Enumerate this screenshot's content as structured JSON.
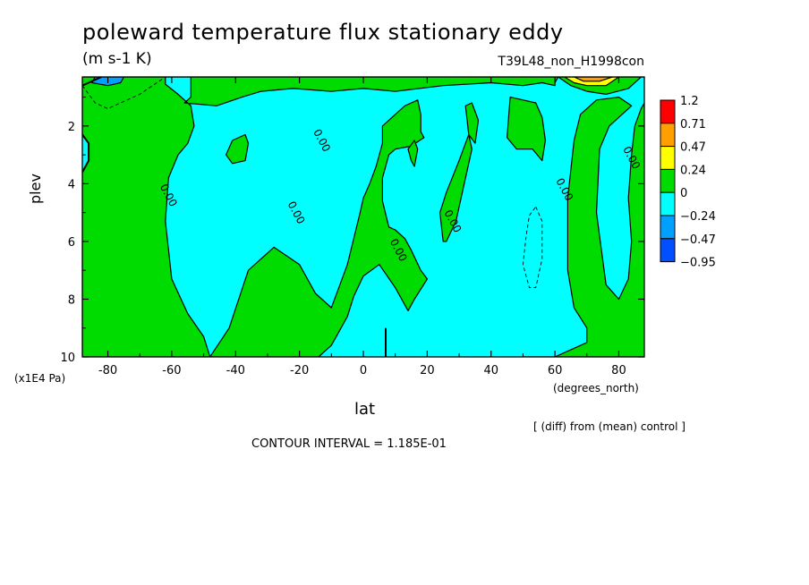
{
  "header": {
    "title": "poleward temperature flux stationary eddy",
    "units": "(m s-1 K)",
    "run_id": "T39L48_non_H1998con"
  },
  "footer": {
    "note": "[ (diff) from (mean) control ]",
    "contour_interval": "CONTOUR INTERVAL = 1.185E-01"
  },
  "chart_data": {
    "type": "contour",
    "title": "poleward temperature flux stationary eddy",
    "subtitle": "(m s-1 K)",
    "xlabel": "lat",
    "xunit": "(degrees_north)",
    "ylabel": "plev",
    "yunit": "(x1E4 Pa)",
    "xlim": [
      -88,
      88
    ],
    "ylim": [
      10,
      0.3
    ],
    "y_inverted": true,
    "x_ticks": [
      -80,
      -60,
      -40,
      -20,
      0,
      20,
      40,
      60,
      80
    ],
    "y_ticks": [
      2,
      4,
      6,
      8,
      10
    ],
    "contour_interval": 0.1185,
    "contour_labels": [
      {
        "text": "0.00",
        "lat": -61,
        "plev": 4.4
      },
      {
        "text": "0.00",
        "lat": -21,
        "plev": 5.0
      },
      {
        "text": "0.00",
        "lat": -13,
        "plev": 2.5
      },
      {
        "text": "0.00",
        "lat": 11,
        "plev": 6.3
      },
      {
        "text": "0.00",
        "lat": 28,
        "plev": 5.3
      },
      {
        "text": "0.00",
        "lat": 63,
        "plev": 4.2
      },
      {
        "text": "0.00",
        "lat": 84,
        "plev": 3.1
      }
    ],
    "colorbar": {
      "levels": [
        "1.2",
        "0.71",
        "0.47",
        "0.24",
        "0",
        "-0.24",
        "-0.47",
        "-0.95"
      ],
      "colors": [
        "#ff0000",
        "#ffa000",
        "#ffff00",
        "#00dc00",
        "#00ffff",
        "#00a0ff",
        "#0050ff"
      ]
    },
    "regions": [
      {
        "sign": "positive",
        "color": "#00dc00",
        "polygon": [
          [
            -88,
            0.3
          ],
          [
            -88,
            2.3
          ],
          [
            -86,
            2.6
          ],
          [
            -86,
            3.2
          ],
          [
            -88,
            3.6
          ],
          [
            -88,
            10
          ],
          [
            -48,
            10
          ],
          [
            -50,
            9.3
          ],
          [
            -55,
            8.5
          ],
          [
            -60,
            7.3
          ],
          [
            -62,
            5.3
          ],
          [
            -61,
            3.8
          ],
          [
            -58,
            3.0
          ],
          [
            -55,
            2.6
          ],
          [
            -53,
            2.0
          ],
          [
            -54,
            1.3
          ],
          [
            -58,
            0.9
          ],
          [
            -62,
            0.55
          ],
          [
            -62,
            0.3
          ],
          [
            -54,
            0.3
          ],
          [
            -54,
            1.0
          ],
          [
            -56,
            1.2
          ],
          [
            -46,
            1.3
          ],
          [
            -38,
            1.0
          ],
          [
            -32,
            0.8
          ],
          [
            -22,
            0.7
          ],
          [
            -10,
            0.8
          ],
          [
            0,
            0.7
          ],
          [
            10,
            0.8
          ],
          [
            25,
            0.6
          ],
          [
            40,
            0.5
          ],
          [
            50,
            0.6
          ],
          [
            56,
            0.5
          ],
          [
            60,
            0.6
          ],
          [
            60,
            0.5
          ],
          [
            61,
            0.3
          ]
        ]
      },
      {
        "sign": "positive",
        "color": "#00dc00",
        "polygon": [
          [
            61,
            0.3
          ],
          [
            65,
            0.6
          ],
          [
            70,
            0.8
          ],
          [
            76,
            0.9
          ],
          [
            83,
            0.7
          ],
          [
            87,
            0.3
          ],
          [
            88,
            0.3
          ],
          [
            88,
            1.2
          ],
          [
            87,
            1.4
          ],
          [
            85,
            2.0
          ],
          [
            84,
            3.0
          ],
          [
            83,
            4.5
          ],
          [
            84,
            6.0
          ],
          [
            83,
            7.3
          ],
          [
            80,
            8.0
          ],
          [
            76,
            7.5
          ],
          [
            73,
            5.0
          ],
          [
            74,
            2.8
          ],
          [
            77,
            2.0
          ],
          [
            84,
            1.3
          ],
          [
            80,
            1.0
          ],
          [
            73,
            1.1
          ],
          [
            68,
            1.6
          ],
          [
            66,
            2.5
          ],
          [
            64,
            4.5
          ],
          [
            64,
            7.0
          ],
          [
            66,
            8.3
          ],
          [
            70,
            9.0
          ],
          [
            70,
            9.5
          ],
          [
            60,
            10
          ],
          [
            50,
            10
          ],
          [
            88,
            10
          ],
          [
            88,
            0.3
          ]
        ]
      },
      {
        "sign": "positive",
        "color": "#00dc00",
        "polygon": [
          [
            -48,
            10
          ],
          [
            -42,
            9.0
          ],
          [
            -36,
            7.0
          ],
          [
            -28,
            6.2
          ],
          [
            -20,
            6.8
          ],
          [
            -15,
            7.8
          ],
          [
            -10,
            8.3
          ],
          [
            -5,
            6.8
          ],
          [
            -1,
            5.0
          ],
          [
            0,
            4.5
          ],
          [
            2,
            4.0
          ],
          [
            4,
            3.4
          ],
          [
            6,
            2.6
          ],
          [
            6,
            2.0
          ],
          [
            10,
            1.6
          ],
          [
            13,
            1.3
          ],
          [
            17,
            1.1
          ],
          [
            18,
            1.6
          ],
          [
            18,
            2.2
          ],
          [
            19,
            2.4
          ],
          [
            15,
            2.7
          ],
          [
            10,
            2.8
          ],
          [
            8,
            3.0
          ],
          [
            6,
            3.8
          ],
          [
            6,
            4.6
          ],
          [
            8,
            5.5
          ],
          [
            10,
            5.6
          ],
          [
            13,
            5.9
          ],
          [
            15,
            6.3
          ],
          [
            18,
            7.0
          ],
          [
            20,
            7.3
          ],
          [
            16,
            8.0
          ],
          [
            14,
            8.4
          ],
          [
            10,
            7.6
          ],
          [
            5,
            6.8
          ],
          [
            0,
            7.2
          ],
          [
            -3,
            7.9
          ],
          [
            -5,
            8.6
          ],
          [
            -8,
            9.2
          ],
          [
            -10,
            9.6
          ],
          [
            -14,
            10
          ]
        ]
      },
      {
        "sign": "positive",
        "color": "#00dc00",
        "polygon": [
          [
            -43,
            3.0
          ],
          [
            -41,
            2.5
          ],
          [
            -37,
            2.3
          ],
          [
            -36,
            2.6
          ],
          [
            -37,
            3.2
          ],
          [
            -41,
            3.3
          ]
        ]
      },
      {
        "sign": "positive",
        "color": "#00dc00",
        "polygon": [
          [
            14,
            2.8
          ],
          [
            16,
            2.5
          ],
          [
            17,
            2.8
          ],
          [
            16,
            3.4
          ],
          [
            15,
            3.2
          ]
        ]
      },
      {
        "sign": "positive",
        "color": "#00dc00",
        "polygon": [
          [
            25,
            6.0
          ],
          [
            24,
            5.0
          ],
          [
            26,
            4.3
          ],
          [
            30,
            3.2
          ],
          [
            33,
            2.3
          ],
          [
            34,
            2.8
          ],
          [
            31,
            4.3
          ],
          [
            29,
            5.3
          ],
          [
            26,
            6.0
          ]
        ]
      },
      {
        "sign": "positive",
        "color": "#00dc00",
        "polygon": [
          [
            32,
            1.3
          ],
          [
            34,
            1.2
          ],
          [
            36,
            1.8
          ],
          [
            35,
            2.6
          ],
          [
            33,
            2.3
          ]
        ]
      },
      {
        "sign": "positive",
        "color": "#00dc00",
        "polygon": [
          [
            46,
            1.0
          ],
          [
            54,
            1.2
          ],
          [
            56,
            1.7
          ],
          [
            57,
            2.5
          ],
          [
            56,
            3.2
          ],
          [
            53,
            2.8
          ],
          [
            48,
            2.8
          ],
          [
            45,
            2.4
          ]
        ]
      },
      {
        "sign": "negative",
        "color": "#00a0ff",
        "polygon": [
          [
            -84,
            0.3
          ],
          [
            -75,
            0.3
          ],
          [
            -76,
            0.5
          ],
          [
            -80,
            0.6
          ],
          [
            -85,
            0.5
          ]
        ]
      },
      {
        "sign": "positive",
        "color": "#ffff00",
        "polygon": [
          [
            63,
            0.3
          ],
          [
            80,
            0.3
          ],
          [
            76,
            0.6
          ],
          [
            70,
            0.6
          ],
          [
            66,
            0.5
          ]
        ]
      },
      {
        "sign": "positive",
        "color": "#ffa000",
        "polygon": [
          [
            66,
            0.3
          ],
          [
            78,
            0.3
          ],
          [
            74,
            0.45
          ],
          [
            69,
            0.45
          ]
        ]
      }
    ],
    "dashed_contours": [
      {
        "sign": "negative",
        "path": [
          [
            -88,
            0.6
          ],
          [
            -84,
            1.2
          ],
          [
            -80,
            1.4
          ],
          [
            -76,
            1.2
          ],
          [
            -70,
            0.9
          ],
          [
            -66,
            0.6
          ],
          [
            -62,
            0.3
          ]
        ]
      },
      {
        "sign": "negative",
        "path": [
          [
            54,
            4.8
          ],
          [
            56,
            5.3
          ],
          [
            56,
            6.6
          ],
          [
            54,
            7.6
          ],
          [
            52,
            7.6
          ],
          [
            50,
            6.8
          ],
          [
            51,
            5.8
          ],
          [
            52,
            5.1
          ],
          [
            54,
            4.8
          ]
        ]
      }
    ],
    "solid_contours": [
      {
        "path": [
          [
            -88,
            2.3
          ],
          [
            -86,
            2.6
          ],
          [
            -86,
            3.2
          ],
          [
            -88,
            3.6
          ]
        ]
      },
      {
        "path": [
          [
            -88,
            0.6
          ],
          [
            -82,
            0.3
          ]
        ]
      },
      {
        "path": [
          [
            7,
            9.0
          ],
          [
            7,
            10
          ]
        ]
      }
    ]
  }
}
